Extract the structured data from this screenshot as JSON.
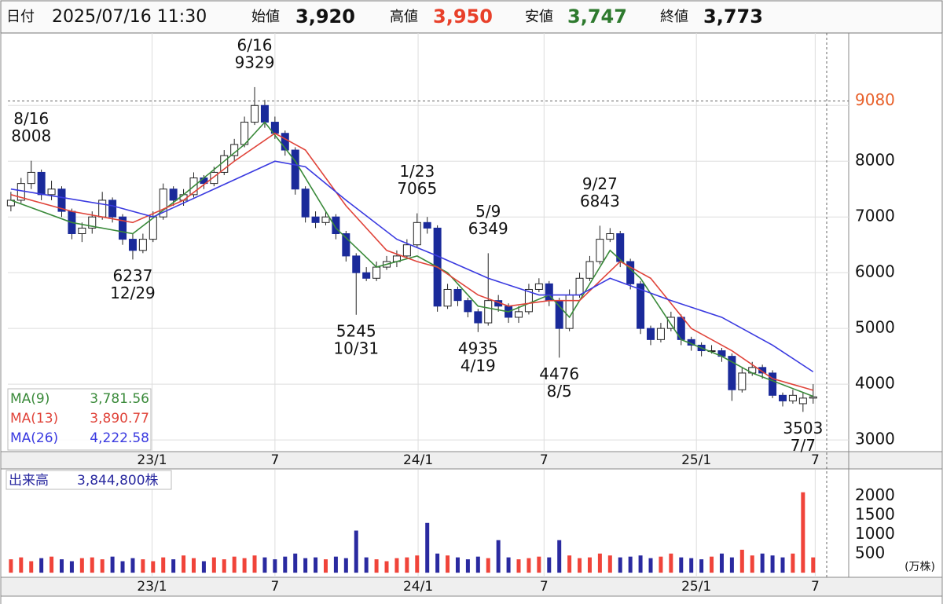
{
  "header": {
    "date_label": "日付",
    "date": "2025/07/16 11:30",
    "open_label": "始値",
    "open": {
      "value": 3920,
      "label": "3,920"
    },
    "high_label": "高値",
    "high": {
      "value": 3950,
      "label": "3,950"
    },
    "low_label": "安値",
    "low": {
      "value": 3747,
      "label": "3,747"
    },
    "close_label": "終値",
    "close": {
      "value": 3773,
      "label": "3,773"
    }
  },
  "chart_data": [
    {
      "type": "candlestick",
      "up_color": "#ffffff",
      "down_color": "#1a2a9a",
      "edge_color": "#222222",
      "xlim": [
        -0.3,
        82.5
      ],
      "xticks": [
        {
          "value": 13.9,
          "label": "23/1"
        },
        {
          "value": 26,
          "label": "7"
        },
        {
          "value": 40.1,
          "label": "24/1"
        },
        {
          "value": 52.5,
          "label": "7"
        },
        {
          "value": 67.5,
          "label": "25/1"
        },
        {
          "value": 79.2,
          "label": "7"
        }
      ],
      "ylim": [
        2790,
        10300
      ],
      "yticks": [
        3000,
        4000,
        5000,
        6000,
        7000,
        8000,
        9000
      ],
      "grid": true,
      "crosshair_price": 9080,
      "candles": [
        [
          7200,
          7450,
          7100,
          7300
        ],
        [
          7300,
          7700,
          7250,
          7600
        ],
        [
          7600,
          8008,
          7500,
          7800
        ],
        [
          7800,
          7850,
          7300,
          7400
        ],
        [
          7400,
          7650,
          7300,
          7500
        ],
        [
          7500,
          7550,
          7000,
          7100
        ],
        [
          7100,
          7150,
          6600,
          6700
        ],
        [
          6700,
          6900,
          6550,
          6800
        ],
        [
          6800,
          7100,
          6700,
          7000
        ],
        [
          7000,
          7450,
          6950,
          7300
        ],
        [
          7300,
          7350,
          6900,
          7000
        ],
        [
          7000,
          7050,
          6500,
          6600
        ],
        [
          6600,
          6700,
          6237,
          6400
        ],
        [
          6400,
          6700,
          6350,
          6600
        ],
        [
          6600,
          7100,
          6550,
          7000
        ],
        [
          7000,
          7600,
          6950,
          7500
        ],
        [
          7500,
          7550,
          7200,
          7300
        ],
        [
          7300,
          7500,
          7200,
          7400
        ],
        [
          7400,
          7800,
          7350,
          7700
        ],
        [
          7700,
          7750,
          7500,
          7600
        ],
        [
          7600,
          7900,
          7550,
          7800
        ],
        [
          7800,
          8200,
          7750,
          8100
        ],
        [
          8100,
          8400,
          8000,
          8300
        ],
        [
          8300,
          8800,
          8250,
          8700
        ],
        [
          8700,
          9329,
          8650,
          9000
        ],
        [
          9000,
          9100,
          8600,
          8700
        ],
        [
          8700,
          8800,
          8400,
          8500
        ],
        [
          8500,
          8550,
          8100,
          8200
        ],
        [
          8200,
          8250,
          7400,
          7500
        ],
        [
          7500,
          7550,
          6900,
          7000
        ],
        [
          7000,
          7100,
          6800,
          6900
        ],
        [
          6900,
          7100,
          6850,
          7000
        ],
        [
          7000,
          7050,
          6600,
          6700
        ],
        [
          6700,
          6750,
          6200,
          6300
        ],
        [
          6300,
          6350,
          5245,
          6000
        ],
        [
          6000,
          6100,
          5850,
          5900
        ],
        [
          5900,
          6200,
          5850,
          6100
        ],
        [
          6100,
          6300,
          6050,
          6200
        ],
        [
          6200,
          6400,
          6100,
          6300
        ],
        [
          6300,
          6600,
          6250,
          6500
        ],
        [
          6500,
          7065,
          6450,
          6900
        ],
        [
          6900,
          7000,
          6700,
          6800
        ],
        [
          6800,
          6850,
          5300,
          5400
        ],
        [
          5400,
          5800,
          5350,
          5700
        ],
        [
          5700,
          5750,
          5400,
          5500
        ],
        [
          5500,
          5550,
          5200,
          5300
        ],
        [
          5300,
          5350,
          4935,
          5100
        ],
        [
          5100,
          6349,
          5050,
          5500
        ],
        [
          5500,
          5600,
          5300,
          5400
        ],
        [
          5400,
          5450,
          5100,
          5200
        ],
        [
          5200,
          5400,
          5100,
          5300
        ],
        [
          5300,
          5800,
          5250,
          5700
        ],
        [
          5700,
          5900,
          5650,
          5800
        ],
        [
          5800,
          5850,
          5400,
          5500
        ],
        [
          5500,
          5550,
          4476,
          5000
        ],
        [
          5000,
          5700,
          4950,
          5600
        ],
        [
          5600,
          6000,
          5550,
          5900
        ],
        [
          5900,
          6300,
          5850,
          6200
        ],
        [
          6200,
          6843,
          6150,
          6600
        ],
        [
          6600,
          6800,
          6550,
          6700
        ],
        [
          6700,
          6750,
          6100,
          6200
        ],
        [
          6200,
          6250,
          5700,
          5800
        ],
        [
          5800,
          5850,
          4900,
          5000
        ],
        [
          5000,
          5050,
          4700,
          4800
        ],
        [
          4800,
          5100,
          4750,
          5000
        ],
        [
          5000,
          5300,
          4950,
          5200
        ],
        [
          5200,
          5250,
          4700,
          4800
        ],
        [
          4800,
          4850,
          4600,
          4700
        ],
        [
          4700,
          4750,
          4500,
          4600
        ],
        [
          4600,
          4700,
          4550,
          4600
        ],
        [
          4600,
          4650,
          4400,
          4500
        ],
        [
          4500,
          4550,
          3700,
          3900
        ],
        [
          3900,
          4300,
          3850,
          4200
        ],
        [
          4200,
          4400,
          4150,
          4300
        ],
        [
          4300,
          4350,
          4100,
          4200
        ],
        [
          4200,
          4250,
          3750,
          3800
        ],
        [
          3800,
          3850,
          3600,
          3700
        ],
        [
          3700,
          3900,
          3650,
          3800
        ],
        [
          3650,
          3850,
          3503,
          3750
        ],
        [
          3750,
          4000,
          3650,
          3773
        ]
      ],
      "series": [
        {
          "name": "MA(9)",
          "color": "#3a8a3a",
          "current": {
            "value": 3781.56,
            "label": "3,781.56"
          },
          "x": [
            0,
            6,
            12,
            17,
            23,
            25,
            28,
            32,
            36,
            40,
            43,
            46,
            49,
            53,
            55,
            59,
            62,
            66,
            70,
            73,
            79
          ],
          "values": [
            7300,
            6900,
            6700,
            7400,
            8300,
            8700,
            8000,
            6800,
            6100,
            6300,
            6000,
            5400,
            5300,
            5600,
            5200,
            6400,
            5900,
            4800,
            4500,
            4200,
            3782
          ]
        },
        {
          "name": "MA(13)",
          "color": "#e0443a",
          "current": {
            "value": 3890.77,
            "label": "3,890.77"
          },
          "x": [
            0,
            6,
            12,
            17,
            22,
            26,
            29,
            33,
            37,
            40,
            42,
            46,
            49,
            53,
            56,
            60,
            63,
            67,
            71,
            75,
            79
          ],
          "values": [
            7400,
            7100,
            6900,
            7300,
            8000,
            8500,
            8200,
            7200,
            6400,
            6200,
            6100,
            5600,
            5400,
            5500,
            5500,
            6200,
            5900,
            5000,
            4600,
            4100,
            3891
          ]
        },
        {
          "name": "MA(26)",
          "color": "#3a3ae0",
          "current": {
            "value": 4222.58,
            "label": "4,222.58"
          },
          "x": [
            0,
            10,
            14,
            20,
            26,
            29,
            33,
            38,
            42,
            47,
            52,
            56,
            59,
            62,
            65,
            70,
            75,
            79
          ],
          "values": [
            7500,
            7200,
            7000,
            7500,
            8000,
            7900,
            7300,
            6600,
            6300,
            5900,
            5600,
            5600,
            5900,
            5700,
            5500,
            5200,
            4700,
            4222
          ]
        }
      ],
      "annotations": [
        {
          "date": "8/16",
          "price": 8008
        },
        {
          "date": "12/29",
          "price": 6237
        },
        {
          "date": "6/16",
          "price": 9329
        },
        {
          "date": "10/31",
          "price": 5245
        },
        {
          "date": "1/23",
          "price": 7065
        },
        {
          "date": "4/19",
          "price": 4935
        },
        {
          "date": "5/9",
          "price": 6349
        },
        {
          "date": "8/5",
          "price": 4476
        },
        {
          "date": "9/27",
          "price": 6843
        },
        {
          "date": "7/7",
          "price": 3503
        }
      ]
    },
    {
      "type": "volume",
      "title": "出来高",
      "current": {
        "value": 3844800,
        "label": "3,844,800株"
      },
      "unit": "(万株)",
      "up_color": "#f0443a",
      "down_color": "#2a2aa0",
      "xlim": [
        -0.3,
        82.5
      ],
      "xticks": [
        {
          "value": 13.9,
          "label": "23/1"
        },
        {
          "value": 26,
          "label": "7"
        },
        {
          "value": 40.1,
          "label": "24/1"
        },
        {
          "value": 52.5,
          "label": "7"
        },
        {
          "value": 67.5,
          "label": "25/1"
        },
        {
          "value": 79.2,
          "label": "7"
        }
      ],
      "ylim": [
        -120,
        2690
      ],
      "yticks": [
        500,
        1000,
        1500,
        2000
      ],
      "values": [
        350,
        400,
        300,
        380,
        420,
        350,
        300,
        380,
        400,
        350,
        420,
        300,
        380,
        350,
        300,
        400,
        350,
        450,
        380,
        300,
        400,
        350,
        420,
        380,
        450,
        400,
        350,
        420,
        500,
        380,
        400,
        350,
        420,
        380,
        1100,
        400,
        350,
        300,
        380,
        400,
        450,
        1300,
        500,
        450,
        400,
        350,
        420,
        380,
        850,
        400,
        350,
        380,
        420,
        400,
        850,
        450,
        380,
        400,
        500,
        450,
        400,
        420,
        450,
        380,
        420,
        500,
        400,
        380,
        350,
        420,
        500,
        400,
        600,
        450,
        500,
        450,
        400,
        500,
        2100,
        400
      ]
    }
  ]
}
